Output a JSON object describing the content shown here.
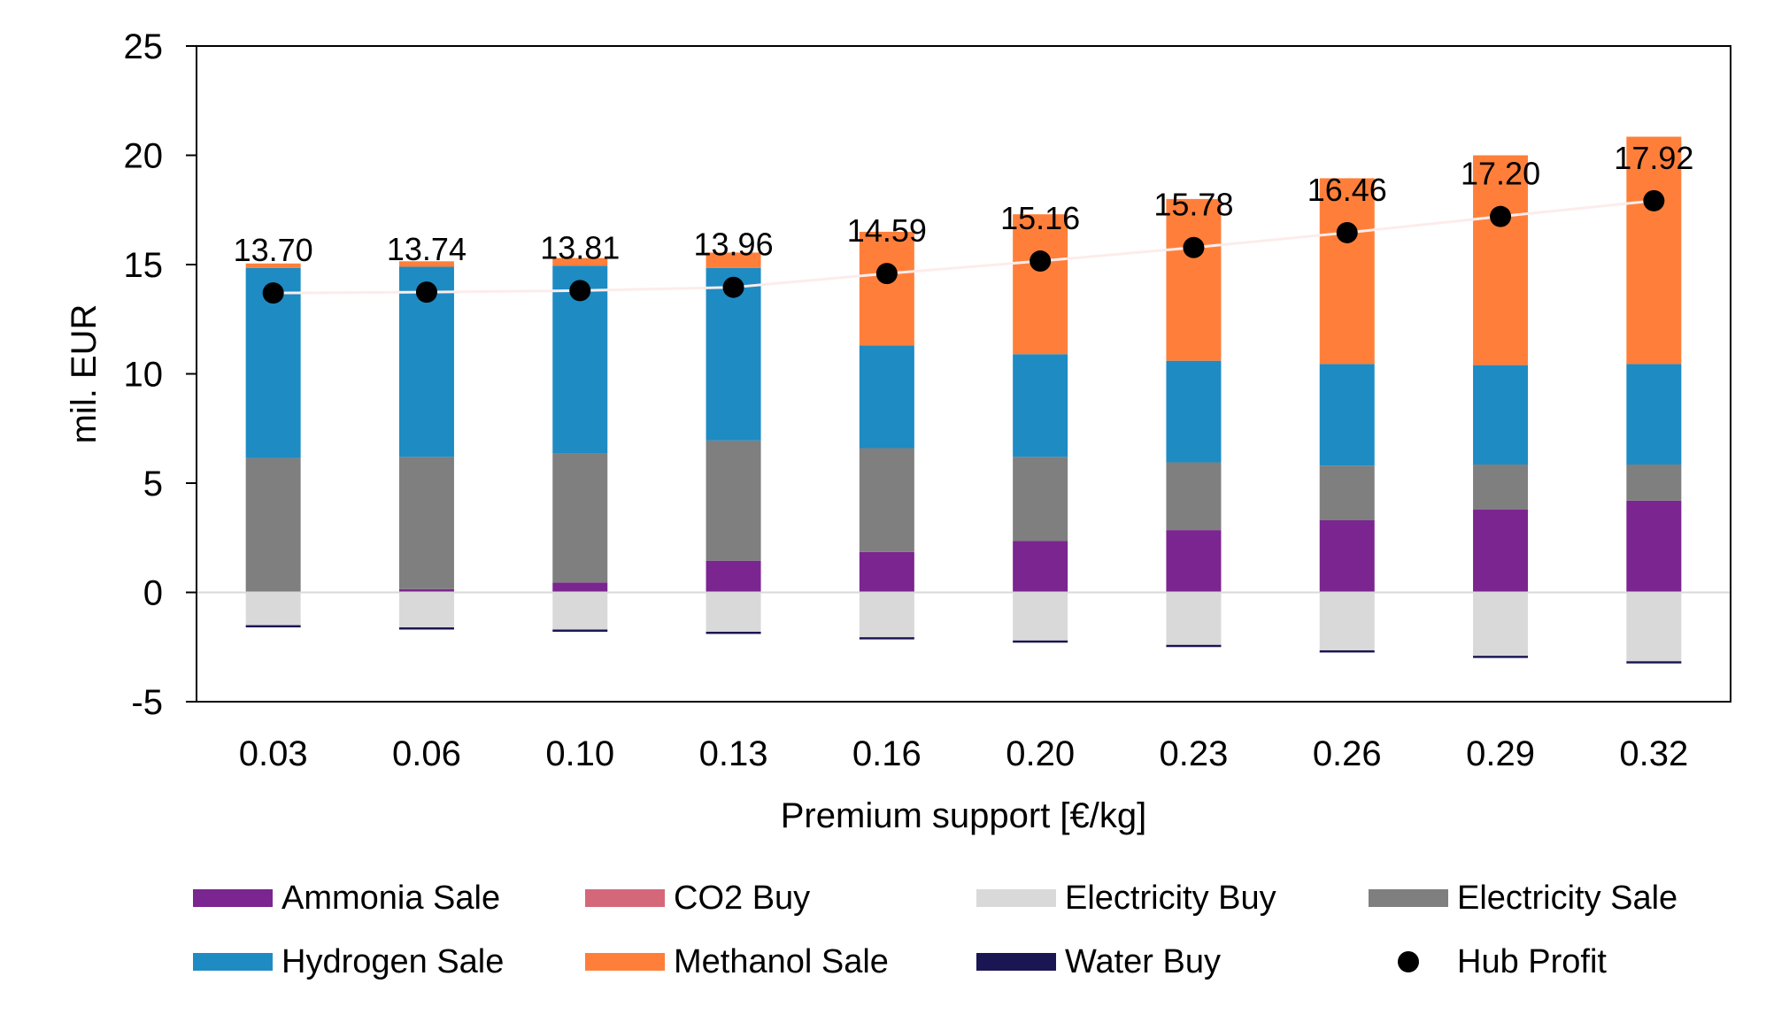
{
  "chart_data": {
    "type": "bar",
    "stacked": true,
    "xlabel": "Premium support [€/kg]",
    "ylabel": "mil. EUR",
    "ylim": [
      -5,
      25
    ],
    "yticks": [
      -5,
      0,
      5,
      10,
      15,
      20,
      25
    ],
    "categories": [
      "0.03",
      "0.06",
      "0.10",
      "0.13",
      "0.16",
      "0.20",
      "0.23",
      "0.26",
      "0.29",
      "0.32"
    ],
    "series": [
      {
        "name": "Ammonia Sale",
        "color": "#7B2590",
        "values": [
          0.0,
          0.15,
          0.45,
          1.45,
          1.85,
          2.35,
          2.85,
          3.3,
          3.8,
          4.2
        ]
      },
      {
        "name": "CO2 Buy",
        "color": "#D4687A",
        "values": [
          0,
          0,
          0,
          0,
          0,
          0,
          0,
          0,
          0,
          0
        ]
      },
      {
        "name": "Electricity Buy",
        "color": "#D9D9D9",
        "values": [
          -1.5,
          -1.6,
          -1.7,
          -1.8,
          -2.05,
          -2.2,
          -2.4,
          -2.65,
          -2.9,
          -3.15
        ]
      },
      {
        "name": "Electricity Sale",
        "color": "#7F7F7F",
        "values": [
          6.15,
          6.05,
          5.9,
          5.5,
          4.75,
          3.85,
          3.1,
          2.5,
          2.05,
          1.65
        ]
      },
      {
        "name": "Hydrogen Sale",
        "color": "#1E8BC3",
        "values": [
          8.7,
          8.7,
          8.6,
          7.9,
          4.7,
          4.7,
          4.65,
          4.65,
          4.55,
          4.6
        ]
      },
      {
        "name": "Methanol Sale",
        "color": "#FF7F3A",
        "values": [
          0.2,
          0.25,
          0.35,
          0.7,
          5.2,
          6.4,
          7.4,
          8.5,
          9.6,
          10.4
        ]
      },
      {
        "name": "Water Buy",
        "color": "#1A1553",
        "values": [
          -0.1,
          -0.1,
          -0.1,
          -0.1,
          -0.1,
          -0.1,
          -0.1,
          -0.1,
          -0.1,
          -0.1
        ]
      }
    ],
    "profit": {
      "name": "Hub Profit",
      "color": "#000000",
      "values": [
        13.7,
        13.74,
        13.81,
        13.96,
        14.59,
        15.16,
        15.78,
        16.46,
        17.2,
        17.92
      ],
      "labels": [
        "13.70",
        "13.74",
        "13.81",
        "13.96",
        "14.59",
        "15.16",
        "15.78",
        "16.46",
        "17.20",
        "17.92"
      ]
    },
    "legend_position": "bottom",
    "grid": false
  },
  "legend": {
    "items": [
      {
        "label": "Ammonia Sale",
        "color": "#7B2590",
        "kind": "bar"
      },
      {
        "label": "CO2 Buy",
        "color": "#D4687A",
        "kind": "bar"
      },
      {
        "label": "Electricity Buy",
        "color": "#D9D9D9",
        "kind": "bar"
      },
      {
        "label": "Electricity Sale",
        "color": "#7F7F7F",
        "kind": "bar"
      },
      {
        "label": "Hydrogen Sale",
        "color": "#1E8BC3",
        "kind": "bar"
      },
      {
        "label": "Methanol Sale",
        "color": "#FF7F3A",
        "kind": "bar"
      },
      {
        "label": "Water Buy",
        "color": "#1A1553",
        "kind": "bar"
      },
      {
        "label": "Hub Profit",
        "color": "#000000",
        "kind": "dot"
      }
    ]
  }
}
